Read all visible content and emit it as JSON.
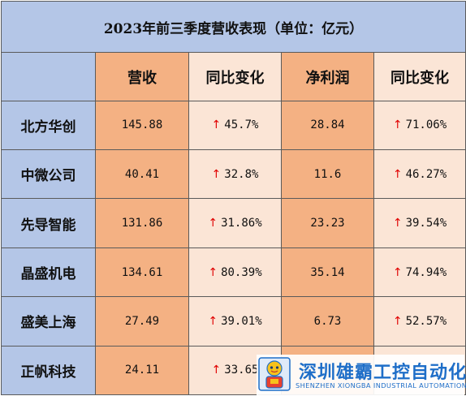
{
  "title": "2023年前三季度营收表现（单位：亿元）",
  "headers": [
    "",
    "营收",
    "同比变化",
    "净利润",
    "同比变化"
  ],
  "arrow_symbol": "↑",
  "rows": [
    {
      "name": "北方华创",
      "revenue": "145.88",
      "revenue_yoy": "45.7%",
      "profit": "28.84",
      "profit_yoy": "71.06%"
    },
    {
      "name": "中微公司",
      "revenue": "40.41",
      "revenue_yoy": "32.8%",
      "profit": "11.6",
      "profit_yoy": "46.27%"
    },
    {
      "name": "先导智能",
      "revenue": "131.86",
      "revenue_yoy": "31.86%",
      "profit": "23.23",
      "profit_yoy": "39.54%"
    },
    {
      "name": "晶盛机电",
      "revenue": "134.61",
      "revenue_yoy": "80.39%",
      "profit": "35.14",
      "profit_yoy": "74.94%"
    },
    {
      "name": "盛美上海",
      "revenue": "27.49",
      "revenue_yoy": "39.01%",
      "profit": "6.73",
      "profit_yoy": "52.57%"
    },
    {
      "name": "正帆科技",
      "revenue": "24.11",
      "revenue_yoy": "33.65",
      "profit": "",
      "profit_yoy": ""
    }
  ],
  "watermark": {
    "name_cn": "深圳雄霸工控自动化",
    "name_en": "SHENZHEN XIONGBA INDUSTRIAL AUTOMATION"
  },
  "colors": {
    "header_blue": "#b4c6e7",
    "revenue_orange": "#f4b183",
    "light_orange": "#fbe5d6",
    "arrow_red": "#e00000",
    "watermark_blue": "#1e6ec8"
  }
}
